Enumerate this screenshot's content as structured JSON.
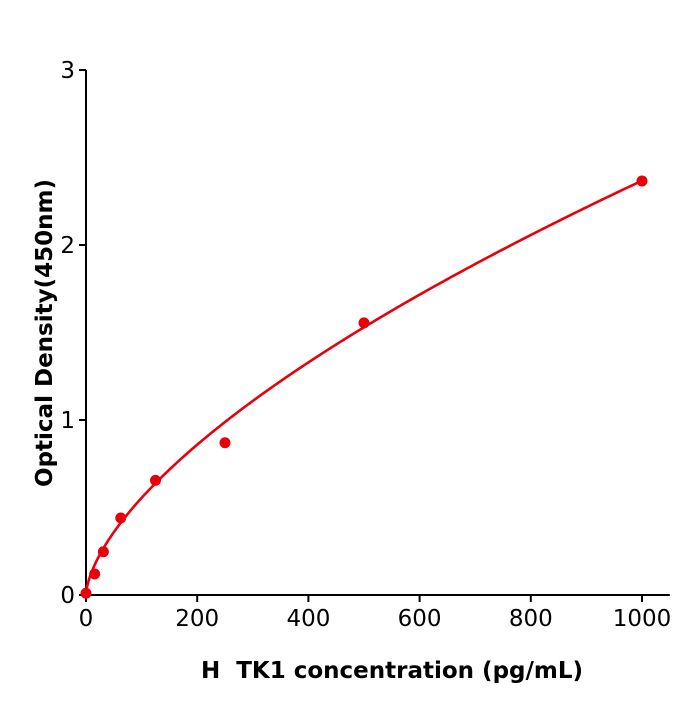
{
  "chart_data": {
    "type": "scatter",
    "xlabel": "H  TK1 concentration (pg/mL)",
    "ylabel": "Optical Density(450nm)",
    "xlim": [
      0,
      1050
    ],
    "ylim": [
      0,
      3
    ],
    "xticks": [
      0,
      200,
      400,
      600,
      800,
      1000
    ],
    "yticks": [
      0,
      1,
      2,
      3
    ],
    "grid": false,
    "color": "#e8000b",
    "points": {
      "x": [
        0,
        15.6,
        31.25,
        62.5,
        125,
        250,
        500,
        1000
      ],
      "y": [
        0.01,
        0.12,
        0.247,
        0.44,
        0.655,
        0.87,
        1.555,
        2.366
      ]
    },
    "fit_curve": {
      "type": "power",
      "a": 0.0305,
      "b": 0.63,
      "x_range": [
        0,
        1000
      ]
    }
  }
}
